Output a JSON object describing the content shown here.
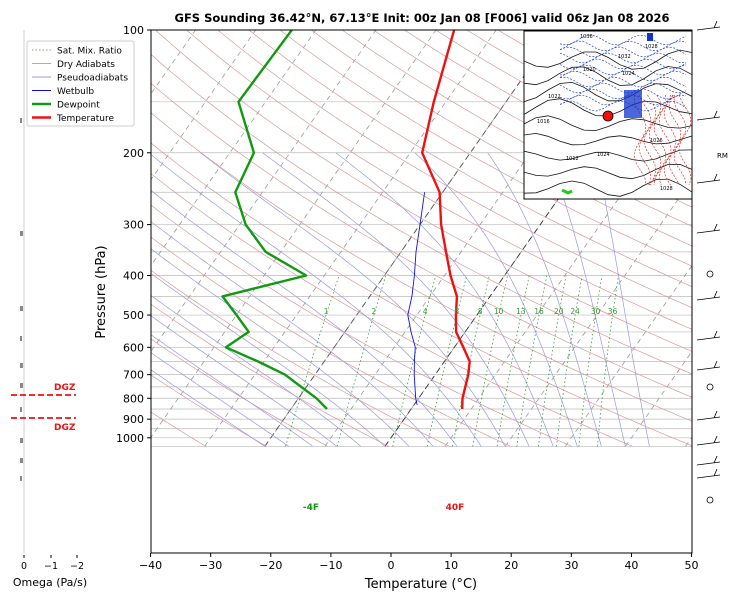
{
  "chart_data": {
    "type": "line",
    "title": "GFS Sounding 36.42°N, 67.13°E Init: 00z Jan 08 [F006] valid 06z Jan 08 2026",
    "xlabel": "Temperature (°C)",
    "ylabel": "Pressure (hPa)",
    "x_ticks": [
      "−40",
      "−30",
      "−20",
      "−10",
      "0",
      "10",
      "20",
      "30",
      "40",
      "50"
    ],
    "y_ticks": [
      "100",
      "200",
      "300",
      "400",
      "500",
      "600",
      "700",
      "800",
      "900",
      "1000"
    ],
    "xlim": [
      -40,
      50
    ],
    "ylim": [
      1050,
      100
    ],
    "y_scale": "log",
    "skew": "skew-T (isotherms slanted 45°)",
    "legend": [
      "Sat. Mix. Ratio",
      "Dry Adiabats",
      "Pseudoadiabats",
      "Wetbulb",
      "Dewpoint",
      "Temperature"
    ],
    "legend_placement": "top-left",
    "series": [
      {
        "name": "Temperature",
        "color": "#ee1111",
        "points": [
          [
            8.5,
            850
          ],
          [
            7.3,
            800
          ],
          [
            5.5,
            700
          ],
          [
            4.2,
            650
          ],
          [
            1.5,
            600
          ],
          [
            -1.5,
            550
          ],
          [
            -3.5,
            500
          ],
          [
            -5.5,
            450
          ],
          [
            -9,
            400
          ],
          [
            -12.5,
            350
          ],
          [
            -16.5,
            300
          ],
          [
            -20.5,
            250
          ],
          [
            -28,
            200
          ],
          [
            -32,
            150
          ],
          [
            -37,
            100
          ]
        ]
      },
      {
        "name": "Dewpoint",
        "color": "#119911",
        "points": [
          [
            -14,
            850
          ],
          [
            -17,
            800
          ],
          [
            -25,
            700
          ],
          [
            -31,
            650
          ],
          [
            -38,
            600
          ],
          [
            -36,
            550
          ],
          [
            -40,
            500
          ],
          [
            -44.5,
            450
          ],
          [
            -33,
            400
          ],
          [
            -42.5,
            350
          ],
          [
            -49,
            300
          ],
          [
            -54.5,
            250
          ],
          [
            -56,
            200
          ],
          [
            -64.5,
            150
          ],
          [
            -64,
            100
          ]
        ]
      },
      {
        "name": "Wetbulb",
        "color": "#1111dd",
        "points": [
          [
            0.5,
            830
          ],
          [
            -0.5,
            800
          ],
          [
            -3.5,
            700
          ],
          [
            -5,
            650
          ],
          [
            -6.5,
            600
          ],
          [
            -9,
            550
          ],
          [
            -11.5,
            500
          ],
          [
            -13,
            450
          ],
          [
            -15,
            400
          ],
          [
            -17.5,
            350
          ],
          [
            -20,
            300
          ],
          [
            -23,
            250
          ]
        ]
      }
    ],
    "mixing_ratio_labels": [
      "1",
      "2",
      "4",
      "6",
      "8",
      "10",
      "13",
      "16",
      "20",
      "24",
      "30",
      "36"
    ],
    "annotations": {
      "surface_dewpoint": "-4F",
      "surface_temperature": "40F"
    },
    "omega": {
      "xlabel": "Omega (Pa/s)",
      "x_ticks": [
        "0",
        "−1",
        "−2"
      ],
      "dgz_label": "DGZ"
    },
    "inset_map_labels": [
      "1036",
      "1032",
      "1028",
      "1024",
      "1020",
      "1016",
      "1012",
      "1024",
      "1026",
      "1028",
      "1022"
    ],
    "wind_label": "RM"
  },
  "colors": {
    "temperature": "#ee1111",
    "dewpoint": "#119911",
    "wetbulb": "#1111dd",
    "dry_adiabat": "#d99a9a",
    "moist_adiabat": "#9a9ad9",
    "mix_ratio": "#3c9a3c"
  }
}
